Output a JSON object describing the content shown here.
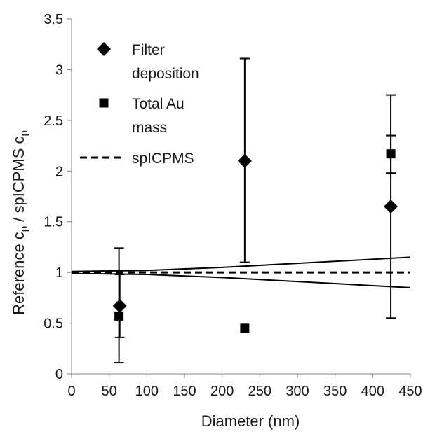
{
  "chart_data": {
    "type": "scatter",
    "xlabel": "Diameter (nm)",
    "ylabel_parts": [
      "Reference c",
      "p",
      " / spICPMS c",
      "p"
    ],
    "xlim": [
      0,
      450
    ],
    "ylim": [
      0,
      3.5
    ],
    "x_ticks": [
      0,
      50,
      100,
      150,
      200,
      250,
      300,
      350,
      400,
      450
    ],
    "y_ticks": [
      0,
      0.5,
      1,
      1.5,
      2,
      2.5,
      3,
      3.5
    ],
    "y_tick_labels": [
      "0",
      "0.5",
      "1",
      "1.5",
      "2",
      "2.5",
      "3",
      "3.5"
    ],
    "grid": false,
    "legend_position": "top-left",
    "series": [
      {
        "name": "Filter deposition",
        "legend_lines": [
          "Filter",
          "deposition"
        ],
        "marker": "diamond",
        "color": "#000000",
        "points": [
          {
            "x": 64,
            "y": 0.67,
            "y_low": 0.36,
            "y_high": 0.98
          },
          {
            "x": 230,
            "y": 2.1,
            "y_low": 1.1,
            "y_high": 3.11
          },
          {
            "x": 424,
            "y": 1.65,
            "y_low": 0.55,
            "y_high": 2.75
          }
        ]
      },
      {
        "name": "Total Au mass",
        "legend_lines": [
          "Total Au",
          "mass"
        ],
        "marker": "square",
        "color": "#000000",
        "points": [
          {
            "x": 63,
            "y": 0.57,
            "y_low": 0.11,
            "y_high": 1.24
          },
          {
            "x": 230,
            "y": 0.45
          },
          {
            "x": 424,
            "y": 2.17,
            "y_low": 1.98,
            "y_high": 2.35
          }
        ]
      },
      {
        "name": "spICPMS",
        "legend_lines": [
          "spICPMS"
        ],
        "marker": "dashed-line",
        "color": "#000000",
        "x": [
          0,
          450
        ],
        "y": [
          1,
          1
        ]
      }
    ],
    "uncertainty_band": {
      "upper": {
        "x": [
          0,
          100,
          200,
          300,
          400,
          450
        ],
        "y": [
          1.01,
          1.02,
          1.05,
          1.09,
          1.13,
          1.15
        ]
      },
      "lower": {
        "x": [
          0,
          100,
          200,
          300,
          400,
          450
        ],
        "y": [
          0.99,
          0.98,
          0.95,
          0.91,
          0.87,
          0.85
        ]
      }
    }
  }
}
